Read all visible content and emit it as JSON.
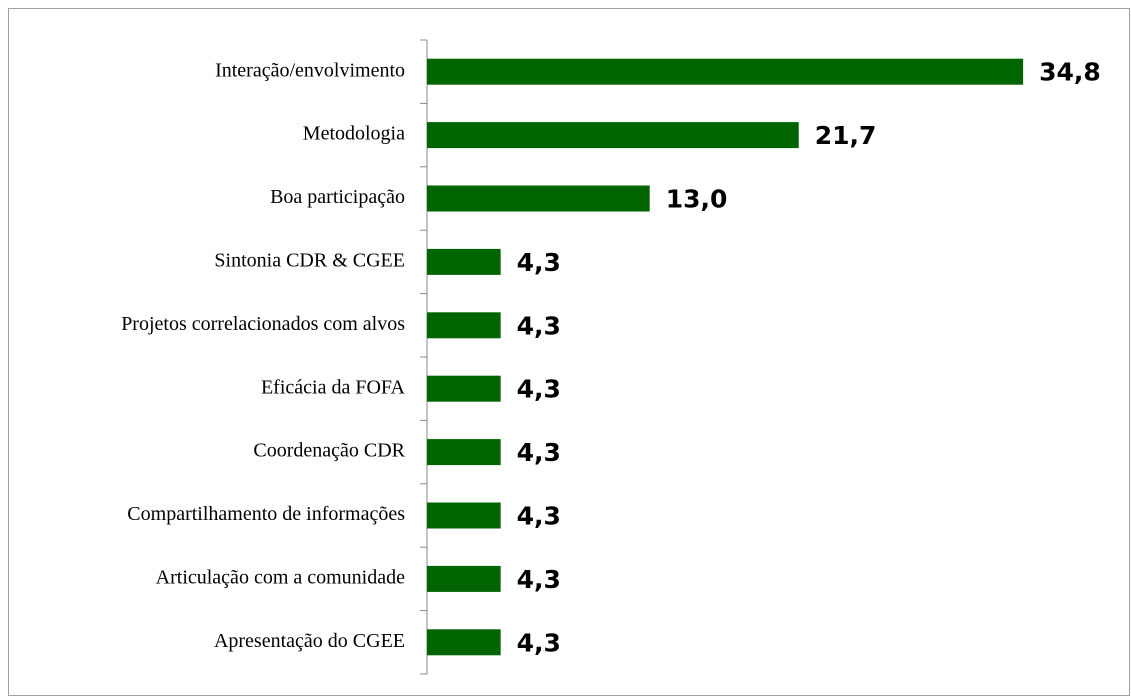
{
  "chart_data": {
    "type": "barh",
    "categories": [
      "Interação/envolvimento",
      "Metodologia",
      "Boa participação",
      "Sintonia CDR & CGEE",
      "Projetos correlacionados com alvos",
      "Eficácia da FOFA",
      "Coordenação CDR",
      "Compartilhamento de informações",
      "Articulação com a comunidade",
      "Apresentação do CGEE"
    ],
    "values": [
      34.8,
      21.7,
      13.0,
      4.3,
      4.3,
      4.3,
      4.3,
      4.3,
      4.3,
      4.3
    ],
    "value_labels": [
      "34,8",
      "21,7",
      "13,0",
      "4,3",
      "4,3",
      "4,3",
      "4,3",
      "4,3",
      "4,3",
      "4,3"
    ],
    "color": "#006400"
  }
}
